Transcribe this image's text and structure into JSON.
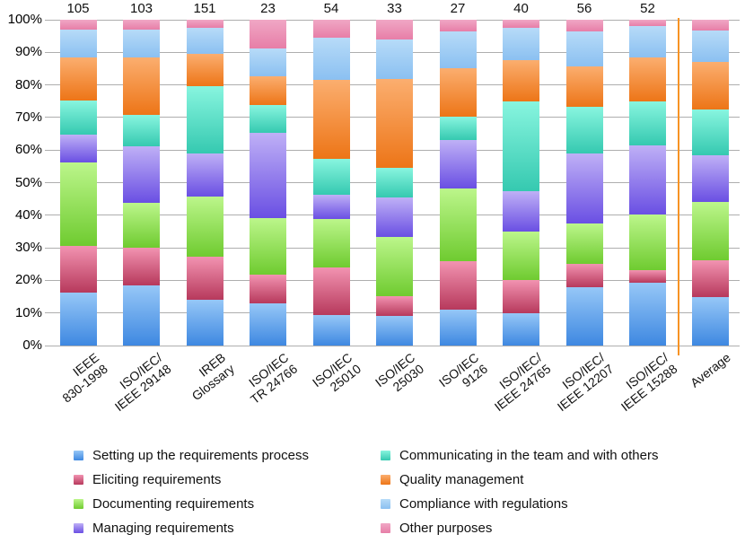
{
  "chart_data": {
    "type": "bar",
    "subtype": "100-percent-stacked-column",
    "title": "",
    "xlabel": "",
    "ylabel": "",
    "ylim": [
      0,
      100
    ],
    "grid": true,
    "legend_position": "bottom-two-columns",
    "y_ticks": [
      "100%",
      "90%",
      "80%",
      "70%",
      "60%",
      "50%",
      "40%",
      "30%",
      "20%",
      "10%",
      "0%"
    ],
    "categories": [
      {
        "lines": [
          "IEEE",
          "830-1998"
        ],
        "count": "105"
      },
      {
        "lines": [
          "ISO/IEC/",
          "IEEE 29148"
        ],
        "count": "103"
      },
      {
        "lines": [
          "IREB",
          "Glossary"
        ],
        "count": "151"
      },
      {
        "lines": [
          "ISO/IEC",
          "TR 24766"
        ],
        "count": "23"
      },
      {
        "lines": [
          "ISO/IEC",
          "25010"
        ],
        "count": "54"
      },
      {
        "lines": [
          "ISO/IEC",
          "25030"
        ],
        "count": "33"
      },
      {
        "lines": [
          "ISO/IEC",
          "9126"
        ],
        "count": "27"
      },
      {
        "lines": [
          "ISO/IEC/",
          "IEEE 24765"
        ],
        "count": "40"
      },
      {
        "lines": [
          "ISO/IEC/",
          "IEEE 12207"
        ],
        "count": "56"
      },
      {
        "lines": [
          "ISO/IEC/",
          "IEEE 15288"
        ],
        "count": "52"
      },
      {
        "lines": [
          "Average"
        ],
        "count": null
      }
    ],
    "series": [
      {
        "name": "Setting up the requirements process",
        "color_top": "#96C7F7",
        "color_bottom": "#3E88E1",
        "values": [
          16.2,
          18.4,
          13.9,
          13.0,
          9.3,
          9.1,
          11.1,
          10.0,
          17.9,
          19.2,
          14.8
        ]
      },
      {
        "name": "Eliciting requirements",
        "color_top": "#F293B1",
        "color_bottom": "#B7395C",
        "values": [
          14.3,
          11.7,
          13.2,
          8.7,
          14.8,
          6.1,
          14.8,
          10.0,
          7.1,
          3.8,
          11.3
        ]
      },
      {
        "name": "Documenting requirements",
        "color_top": "#BCF68B",
        "color_bottom": "#6FCB30",
        "values": [
          25.7,
          13.6,
          18.5,
          17.4,
          14.8,
          18.2,
          22.2,
          15.0,
          12.5,
          17.3,
          17.9
        ]
      },
      {
        "name": "Managing requirements",
        "color_top": "#BFB0F6",
        "color_bottom": "#6A4FE3",
        "values": [
          8.6,
          17.5,
          13.2,
          26.1,
          7.4,
          12.1,
          14.8,
          12.5,
          21.4,
          21.2,
          14.4
        ]
      },
      {
        "name": "Communicating in the team and with others",
        "color_top": "#88F5DF",
        "color_bottom": "#35C9B0",
        "values": [
          10.5,
          9.7,
          20.5,
          8.7,
          11.1,
          9.1,
          7.4,
          27.5,
          14.3,
          13.5,
          14.1
        ]
      },
      {
        "name": "Quality management",
        "color_top": "#FBAE6F",
        "color_bottom": "#ED7517",
        "values": [
          13.3,
          17.5,
          9.9,
          8.7,
          24.1,
          27.3,
          14.8,
          12.5,
          12.5,
          13.5,
          14.6
        ]
      },
      {
        "name": "Compliance with regulations",
        "color_top": "#B7DBF8",
        "color_bottom": "#8BC0F1",
        "values": [
          8.6,
          8.7,
          7.9,
          8.7,
          13.0,
          12.1,
          11.1,
          10.0,
          10.7,
          9.6,
          9.5
        ]
      },
      {
        "name": "Other purposes",
        "color_top": "#F0A7C5",
        "color_bottom": "#E77EA7",
        "values": [
          2.9,
          2.9,
          2.6,
          8.7,
          5.6,
          6.1,
          3.7,
          2.5,
          3.6,
          1.9,
          3.4
        ]
      }
    ],
    "separator": {
      "after_category_index": 9,
      "color": "#F79324"
    }
  }
}
